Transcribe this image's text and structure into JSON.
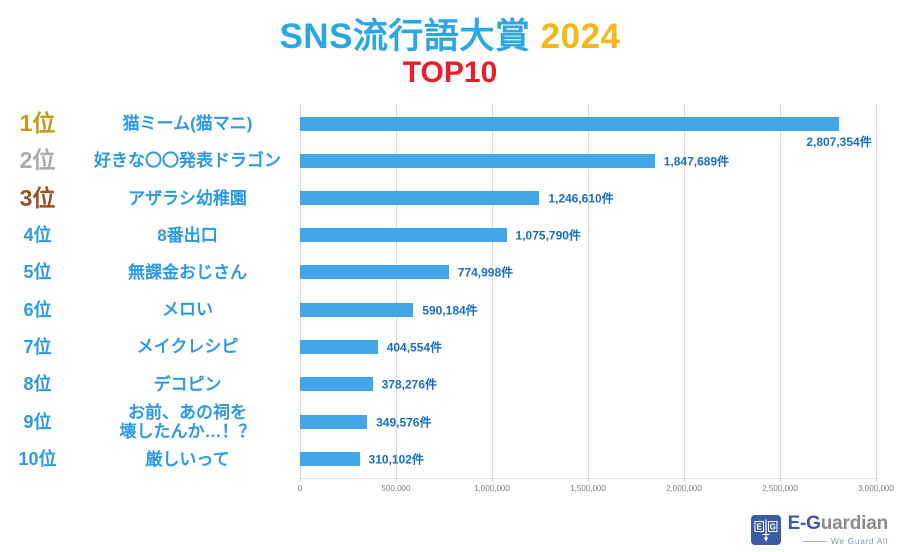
{
  "header": {
    "title_main": "SNS流行語大賞",
    "title_year": "2024",
    "title_sub": "TOP10"
  },
  "chart_data": {
    "type": "bar",
    "orientation": "horizontal",
    "title": "SNS流行語大賞 2024 TOP10",
    "xlabel": "",
    "ylabel": "",
    "xlim": [
      0,
      3000000
    ],
    "grid": true,
    "x_ticks": [
      "0",
      "500,000",
      "1,000,000",
      "1,500,000",
      "2,000,000",
      "2,500,000",
      "3,000,000"
    ],
    "items": [
      {
        "rank": "1位",
        "rank_color": "#C79A1E",
        "label": "猫ミーム(猫マニ)",
        "value": 2807354,
        "value_label": "2,807,354件"
      },
      {
        "rank": "2位",
        "rank_color": "#ACACAC",
        "label": "好きな〇〇発表ドラゴン",
        "value": 1847689,
        "value_label": "1,847,689件"
      },
      {
        "rank": "3位",
        "rank_color": "#9C4F1F",
        "label": "アザラシ幼稚園",
        "value": 1246610,
        "value_label": "1,246,610件"
      },
      {
        "rank": "4位",
        "rank_color": "#2C9BE3",
        "label": "8番出口",
        "value": 1075790,
        "value_label": "1,075,790件"
      },
      {
        "rank": "5位",
        "rank_color": "#2C9BE3",
        "label": "無課金おじさん",
        "value": 774998,
        "value_label": "774,998件"
      },
      {
        "rank": "6位",
        "rank_color": "#2C9BE3",
        "label": "メロい",
        "value": 590184,
        "value_label": "590,184件"
      },
      {
        "rank": "7位",
        "rank_color": "#2C9BE3",
        "label": "メイクレシピ",
        "value": 404554,
        "value_label": "404,554件"
      },
      {
        "rank": "8位",
        "rank_color": "#2C9BE3",
        "label": "デコピン",
        "value": 378276,
        "value_label": "378,276件"
      },
      {
        "rank": "9位",
        "rank_color": "#2C9BE3",
        "label": "お前、あの祠を\n壊したんか…！？",
        "value": 349576,
        "value_label": "349,576件"
      },
      {
        "rank": "10位",
        "rank_color": "#2C9BE3",
        "label": "厳しいって",
        "value": 310102,
        "value_label": "310,102件"
      }
    ]
  },
  "footer": {
    "logo_letter_e": "E",
    "logo_letter_g": "G",
    "brand_blue": "E-G",
    "brand_gray": "uardian",
    "tagline": "We Guard All"
  },
  "colors": {
    "title_blue": "#2BA7E5",
    "title_gold": "#F5B71B",
    "title_red": "#EE1C25",
    "bar_fill": "#41A7E8",
    "item_label_blue": "#2C9BE3",
    "value_label_blue": "#1A6FC4",
    "rank_gold": "#C79A1E",
    "rank_silver": "#ACACAC",
    "rank_bronze": "#9C4F1F",
    "axis_text": "#7f7f7f",
    "gridline": "#dadada",
    "brand_blue": "#3D5CA8",
    "brand_gray": "#8C8C8C"
  }
}
